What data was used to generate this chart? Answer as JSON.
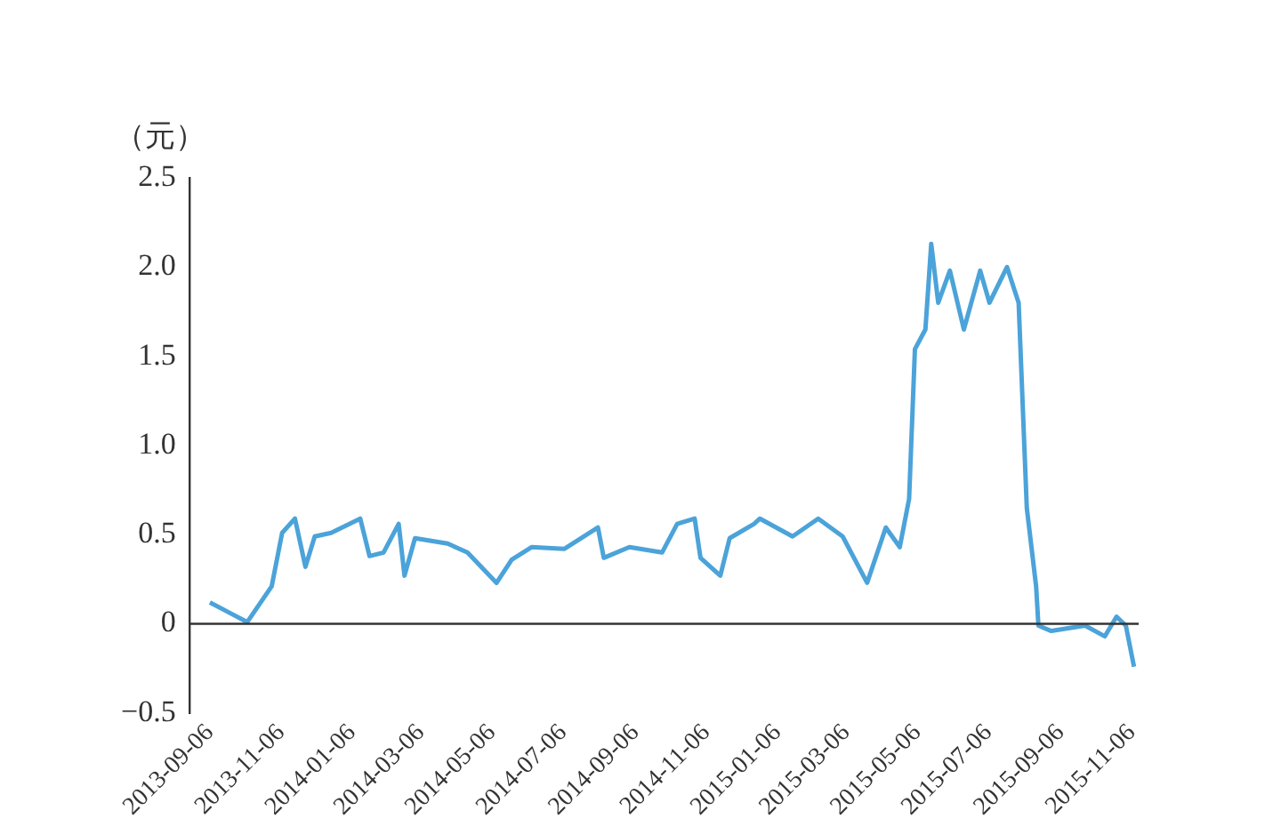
{
  "chart_data": {
    "type": "line",
    "ylabel": "（元）",
    "x": [
      "2013-09-06",
      "2013-10-08",
      "2013-10-29",
      "2013-11-07",
      "2013-11-18",
      "2013-11-27",
      "2013-12-05",
      "2013-12-19",
      "2014-01-13",
      "2014-01-21",
      "2014-02-02",
      "2014-02-15",
      "2014-02-20",
      "2014-03-01",
      "2014-03-29",
      "2014-04-15",
      "2014-05-10",
      "2014-05-23",
      "2014-06-09",
      "2014-07-07",
      "2014-08-05",
      "2014-08-10",
      "2014-09-01",
      "2014-09-29",
      "2014-10-12",
      "2014-10-27",
      "2014-11-01",
      "2014-11-18",
      "2014-11-26",
      "2014-12-17",
      "2014-12-22",
      "2015-01-19",
      "2015-02-10",
      "2015-03-03",
      "2015-03-24",
      "2015-04-09",
      "2015-04-21",
      "2015-04-29",
      "2015-05-04",
      "2015-05-13",
      "2015-05-18",
      "2015-05-24",
      "2015-06-03",
      "2015-06-15",
      "2015-06-29",
      "2015-07-07",
      "2015-07-22",
      "2015-08-01",
      "2015-08-08",
      "2015-08-16",
      "2015-08-18",
      "2015-08-29",
      "2015-09-27",
      "2015-10-14",
      "2015-10-24",
      "2015-11-01",
      "2015-11-08"
    ],
    "series": [
      {
        "color": "#4ba3d9",
        "values": [
          0.12,
          0.01,
          0.21,
          0.51,
          0.59,
          0.32,
          0.49,
          0.51,
          0.59,
          0.38,
          0.4,
          0.56,
          0.27,
          0.48,
          0.45,
          0.4,
          0.23,
          0.36,
          0.43,
          0.42,
          0.54,
          0.37,
          0.43,
          0.4,
          0.56,
          0.59,
          0.37,
          0.27,
          0.48,
          0.56,
          0.59,
          0.49,
          0.59,
          0.49,
          0.23,
          0.54,
          0.43,
          0.7,
          1.54,
          1.65,
          2.13,
          1.8,
          1.98,
          1.65,
          1.98,
          1.8,
          2.0,
          1.8,
          0.65,
          0.21,
          -0.01,
          -0.04,
          -0.01,
          -0.07,
          0.04,
          -0.01,
          -0.24
        ]
      }
    ],
    "xlim": [
      "2013-08-20",
      "2015-11-12"
    ],
    "xticks": [
      "2013-09-06",
      "2013-11-06",
      "2014-01-06",
      "2014-03-06",
      "2014-05-06",
      "2014-07-06",
      "2014-09-06",
      "2014-11-06",
      "2015-01-06",
      "2015-03-06",
      "2015-05-06",
      "2015-07-06",
      "2015-09-06",
      "2015-11-06"
    ],
    "ylim": [
      -0.5,
      2.5
    ],
    "yticks": [
      {
        "value": -0.5,
        "label": "−0.5"
      },
      {
        "value": 0,
        "label": "0"
      },
      {
        "value": 0.5,
        "label": "0.5"
      },
      {
        "value": 1,
        "label": "1.0"
      },
      {
        "value": 1.5,
        "label": "1.5"
      },
      {
        "value": 2,
        "label": "2.0"
      },
      {
        "value": 2.5,
        "label": "2.5"
      }
    ],
    "ref_lines": [
      {
        "axis": "y",
        "value": 0,
        "color": "#333333"
      }
    ],
    "grid": false,
    "legend": false,
    "marker": "none",
    "line_style": "solid"
  }
}
